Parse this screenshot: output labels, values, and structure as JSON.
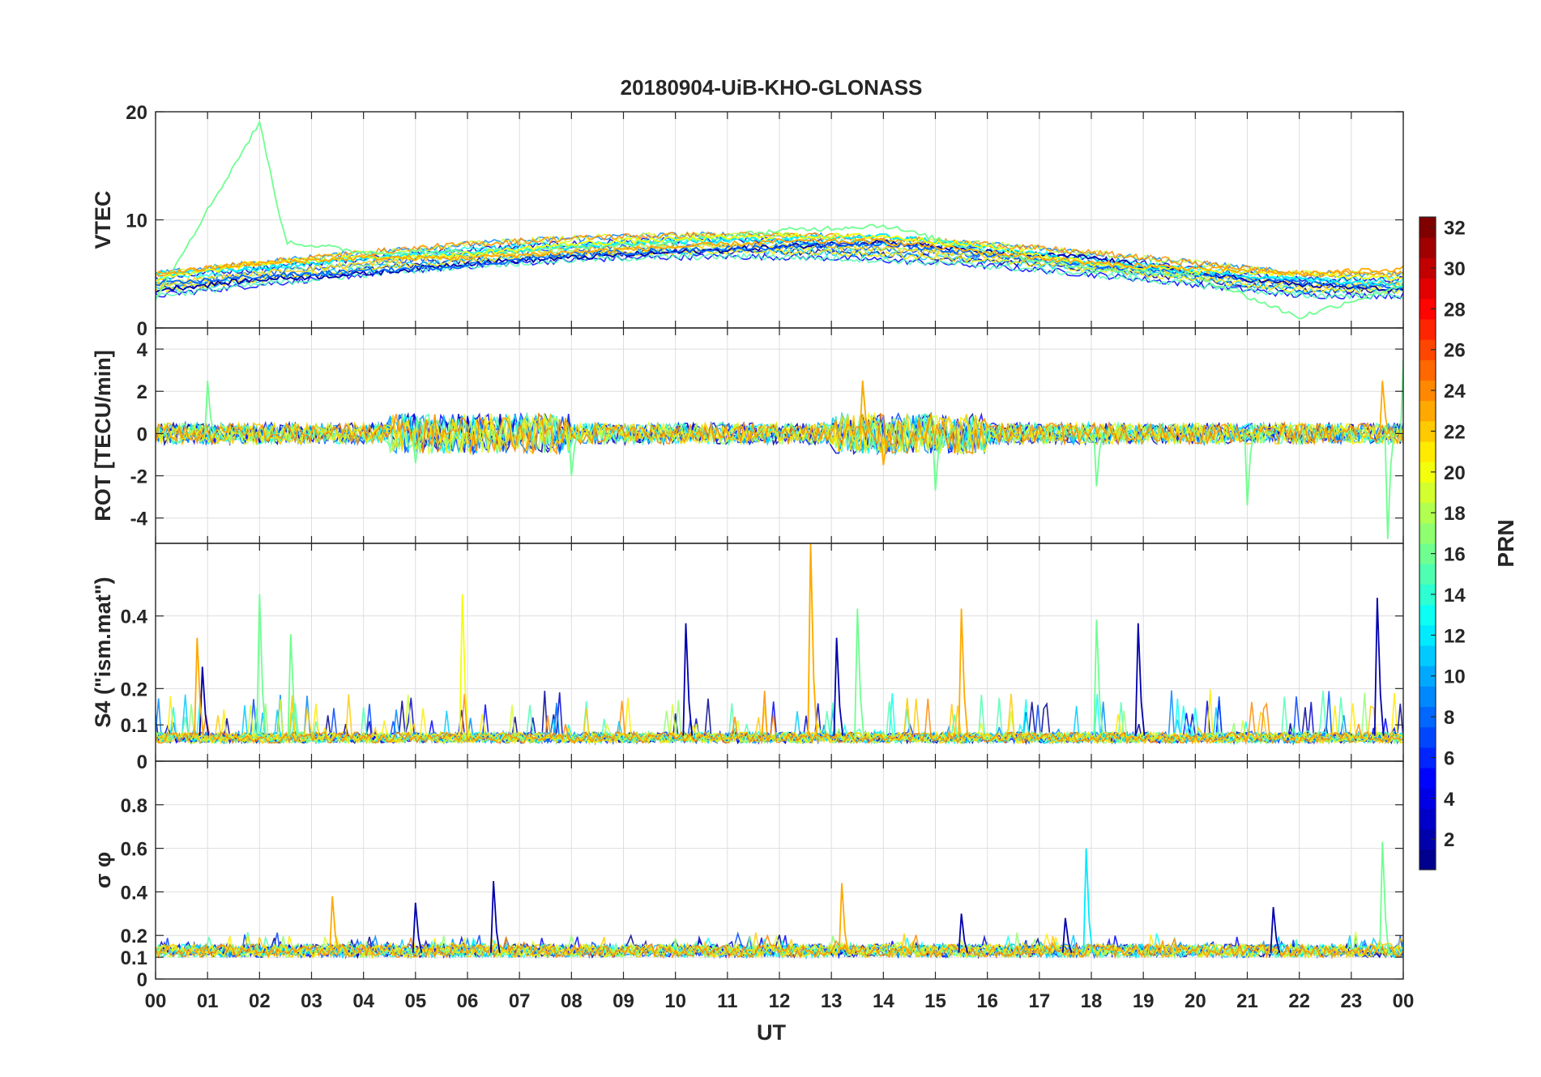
{
  "figure": {
    "title": "20180904-UiB-KHO-GLONASS",
    "xlabel": "UT"
  },
  "colorbar": {
    "label": "PRN",
    "range": [
      1,
      32
    ],
    "ticks": [
      "2",
      "4",
      "6",
      "8",
      "10",
      "12",
      "14",
      "16",
      "18",
      "20",
      "22",
      "24",
      "26",
      "28",
      "30",
      "32"
    ],
    "tick_values": [
      2,
      4,
      6,
      8,
      10,
      12,
      14,
      16,
      18,
      20,
      22,
      24,
      26,
      28,
      30,
      32
    ],
    "colormap": "jet",
    "colors": [
      "#00008f",
      "#0000ff",
      "#0080ff",
      "#00ffff",
      "#80ff80",
      "#ffff00",
      "#ff8000",
      "#ff0000",
      "#800000"
    ]
  },
  "chart_data": [
    {
      "type": "line",
      "panel": "vtec",
      "title": "20180904-UiB-KHO-GLONASS",
      "ylabel": "VTEC",
      "ylim": [
        0,
        20
      ],
      "yticks": [
        0,
        10,
        20
      ],
      "yticklabels": [
        "0",
        "10",
        "20"
      ],
      "xlim": [
        0,
        24
      ],
      "xticks": [
        "00",
        "01",
        "02",
        "03",
        "04",
        "05",
        "06",
        "07",
        "08",
        "09",
        "10",
        "11",
        "12",
        "13",
        "14",
        "15",
        "16",
        "17",
        "18",
        "19",
        "20",
        "21",
        "22",
        "23",
        "00"
      ],
      "grid": true,
      "series": [
        {
          "name": "PRN 2",
          "prn": 2,
          "x": [
            0,
            2,
            4,
            6,
            8,
            10,
            12,
            14,
            16,
            18,
            20,
            22,
            24
          ],
          "values": [
            3.5,
            4.5,
            5,
            6,
            6.5,
            7,
            7.5,
            8,
            7,
            6.5,
            5,
            4,
            3.5
          ]
        },
        {
          "name": "PRN 8",
          "prn": 8,
          "x": [
            0,
            2,
            4,
            6,
            8,
            10,
            12,
            14,
            16,
            18,
            20,
            22,
            24
          ],
          "values": [
            4,
            4.8,
            5.2,
            5.8,
            6.8,
            7.2,
            7.5,
            7.8,
            6.8,
            5.8,
            5,
            4.2,
            3.8
          ]
        },
        {
          "name": "PRN 12",
          "prn": 12,
          "x": [
            0,
            2,
            4,
            6,
            8,
            10,
            12,
            14,
            16,
            18,
            20,
            22,
            24
          ],
          "values": [
            5,
            5.5,
            6.5,
            7,
            7.5,
            8,
            8.2,
            8.5,
            7.5,
            6,
            5.2,
            4.5,
            4
          ]
        },
        {
          "name": "PRN 16",
          "prn": 16,
          "x": [
            0,
            2,
            2.5,
            4,
            6,
            8,
            10,
            12,
            14,
            16,
            18,
            20,
            22,
            24
          ],
          "values": [
            2.8,
            19,
            8,
            7,
            7,
            7.5,
            8,
            9,
            9.5,
            7,
            5.5,
            4.8,
            1,
            4
          ]
        },
        {
          "name": "PRN 20",
          "prn": 20,
          "x": [
            0,
            2,
            4,
            6,
            8,
            10,
            12,
            14,
            16,
            18,
            20,
            22,
            24
          ],
          "values": [
            4.5,
            6,
            6.5,
            6.8,
            7.8,
            8.2,
            8.5,
            8.5,
            7.5,
            6,
            5.3,
            5,
            4.5
          ]
        },
        {
          "name": "PRN 23",
          "prn": 23,
          "x": [
            0,
            2,
            4,
            6,
            8,
            10,
            12,
            14,
            16,
            18,
            20,
            22,
            24
          ],
          "values": [
            5,
            6,
            6.5,
            6.5,
            7,
            7.5,
            8,
            8,
            7,
            6,
            5.5,
            5,
            5.5
          ]
        }
      ]
    },
    {
      "type": "line",
      "panel": "rot",
      "ylabel": "ROT [TECU/min]",
      "ylim": [
        -5.2,
        5
      ],
      "yticks": [
        -4,
        -2,
        0,
        2,
        4
      ],
      "yticklabels": [
        "-4",
        "-2",
        "0",
        "2",
        "4"
      ],
      "xlim": [
        0,
        24
      ],
      "grid": true,
      "series": [
        {
          "name": "PRN 16",
          "prn": 16,
          "x": [
            0,
            1,
            5,
            8,
            13.6,
            15,
            18.1,
            21,
            23.7,
            24
          ],
          "values": [
            0,
            2.5,
            -1.4,
            -2,
            2.5,
            -2.7,
            -2.5,
            -3.4,
            -5,
            3.5
          ]
        },
        {
          "name": "PRN 23",
          "prn": 23,
          "x": [
            0,
            13.6,
            14,
            23.6,
            24
          ],
          "values": [
            0,
            2.5,
            -1.5,
            2.5,
            0
          ]
        }
      ]
    },
    {
      "type": "line",
      "panel": "s4",
      "ylabel": "S4 (\"ism.mat\")",
      "ylim": [
        0,
        0.6
      ],
      "yticks": [
        0,
        0.1,
        0.2,
        0.4
      ],
      "yticklabels": [
        "0",
        "0.1",
        "0.2",
        "0.4"
      ],
      "xlim": [
        0,
        24
      ],
      "grid": true,
      "series": [
        {
          "name": "PRN 2",
          "prn": 2,
          "x": [
            0.9,
            10.2,
            13.1,
            18.9,
            23.5
          ],
          "values": [
            0.26,
            0.38,
            0.34,
            0.38,
            0.45
          ]
        },
        {
          "name": "PRN 16",
          "prn": 16,
          "x": [
            2,
            2.6,
            13.5,
            18.1
          ],
          "values": [
            0.46,
            0.35,
            0.42,
            0.39
          ]
        },
        {
          "name": "PRN 20",
          "prn": 20,
          "x": [
            5.9,
            12.6
          ],
          "values": [
            0.46,
            0.6
          ]
        },
        {
          "name": "PRN 23",
          "prn": 23,
          "x": [
            0.8,
            12.6,
            15.5
          ],
          "values": [
            0.34,
            0.6,
            0.42
          ]
        }
      ]
    },
    {
      "type": "line",
      "panel": "sigma_phi",
      "ylabel": "σ φ",
      "ylim": [
        0,
        1
      ],
      "yticks": [
        0,
        0.1,
        0.2,
        0.4,
        0.6,
        0.8
      ],
      "yticklabels": [
        "0",
        "0.1",
        "0.2",
        "0.4",
        "0.6",
        "0.8"
      ],
      "xlim": [
        0,
        24
      ],
      "xlabel": "UT",
      "grid": true,
      "series": [
        {
          "name": "PRN 2",
          "prn": 2,
          "x": [
            5,
            6.5,
            15.5,
            17.5,
            21.5
          ],
          "values": [
            0.35,
            0.45,
            0.3,
            0.28,
            0.33
          ]
        },
        {
          "name": "PRN 12",
          "prn": 12,
          "x": [
            17.9
          ],
          "values": [
            0.6
          ]
        },
        {
          "name": "PRN 16",
          "prn": 16,
          "x": [
            23.6
          ],
          "values": [
            0.63
          ]
        },
        {
          "name": "PRN 23",
          "prn": 23,
          "x": [
            3.4,
            13.2
          ],
          "values": [
            0.38,
            0.44
          ]
        }
      ]
    }
  ]
}
